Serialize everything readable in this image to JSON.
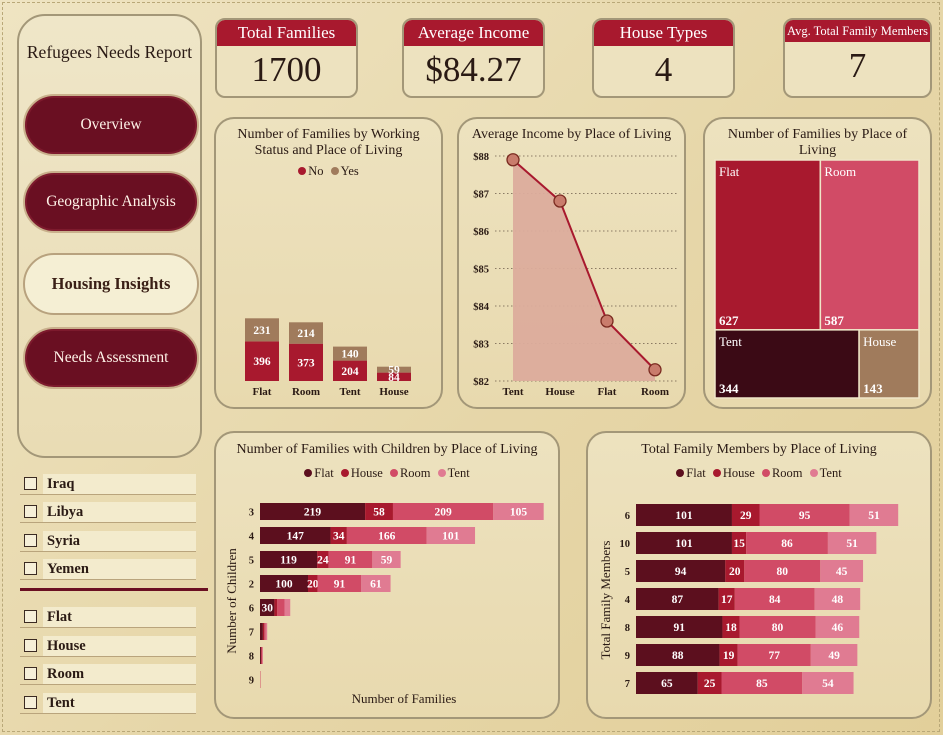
{
  "sidebar": {
    "title": "Refugees Needs Report",
    "nav": [
      {
        "label": "Overview",
        "active": false
      },
      {
        "label": "Geographic Analysis",
        "active": false
      },
      {
        "label": "Housing Insights",
        "active": true
      },
      {
        "label": "Needs Assessment",
        "active": false
      }
    ],
    "country_filters": [
      "Iraq",
      "Libya",
      "Syria",
      "Yemen"
    ],
    "place_filters": [
      "Flat",
      "House",
      "Room",
      "Tent"
    ]
  },
  "kpis": [
    {
      "label": "Total Families",
      "value": "1700"
    },
    {
      "label": "Average Income",
      "value": "$84.27"
    },
    {
      "label": "House Types",
      "value": "4"
    },
    {
      "label": "Avg. Total Family Members",
      "value": "7"
    }
  ],
  "colors": {
    "maroon": "#5c0f1e",
    "crimson": "#a8192e",
    "rose": "#d14b66",
    "pink": "#e07b92",
    "tan": "#a07b5c",
    "dark": "#3b0a15",
    "area_fill": "#dcac9c"
  },
  "chart_data": [
    {
      "id": "working_status",
      "type": "bar",
      "stacked": true,
      "title": "Number of Families by Working Status and Place of Living",
      "categories": [
        "Flat",
        "Room",
        "Tent",
        "House"
      ],
      "series": [
        {
          "name": "No",
          "values": [
            396,
            373,
            204,
            84
          ],
          "color": "#a8192e"
        },
        {
          "name": "Yes",
          "values": [
            231,
            214,
            140,
            59
          ],
          "color": "#a07b5c"
        }
      ],
      "legend": "top"
    },
    {
      "id": "avg_income",
      "type": "area",
      "title": "Average Income by Place of Living",
      "categories": [
        "Tent",
        "House",
        "Flat",
        "Room"
      ],
      "values": [
        87.9,
        86.8,
        83.6,
        82.3
      ],
      "yticks": [
        "$82",
        "$83",
        "$84",
        "$85",
        "$86",
        "$87",
        "$88"
      ],
      "ylim": [
        82,
        88
      ],
      "grid": true
    },
    {
      "id": "treemap",
      "type": "treemap",
      "title": "Number of Families by Place of Living",
      "items": [
        {
          "name": "Flat",
          "value": 627,
          "color": "#a8192e"
        },
        {
          "name": "Room",
          "value": 587,
          "color": "#d14b66"
        },
        {
          "name": "Tent",
          "value": 344,
          "color": "#3b0a15"
        },
        {
          "name": "House",
          "value": 143,
          "color": "#a07b5c"
        }
      ]
    },
    {
      "id": "children",
      "type": "bar",
      "orientation": "horizontal",
      "stacked": true,
      "title": "Number of Families with Children by Place of Living",
      "xlabel": "Number of Families",
      "ylabel": "Number of Children",
      "categories": [
        "3",
        "4",
        "5",
        "2",
        "6",
        "7",
        "8",
        "9"
      ],
      "series": [
        {
          "name": "Flat",
          "values": [
            219,
            147,
            119,
            100,
            30,
            6,
            2,
            0
          ],
          "color": "#5c0f1e"
        },
        {
          "name": "House",
          "values": [
            58,
            34,
            24,
            20,
            6,
            3,
            1,
            0
          ],
          "color": "#a8192e"
        },
        {
          "name": "Room",
          "values": [
            209,
            166,
            91,
            91,
            15,
            3,
            2,
            1
          ],
          "color": "#d14b66"
        },
        {
          "name": "Tent",
          "values": [
            105,
            101,
            59,
            61,
            12,
            3,
            1,
            0
          ],
          "color": "#e07b92"
        }
      ],
      "label_min": 20,
      "legend": "top"
    },
    {
      "id": "members",
      "type": "bar",
      "orientation": "horizontal",
      "stacked": true,
      "title": "Total Family Members by Place of Living",
      "ylabel": "Total Family Members",
      "categories": [
        "6",
        "10",
        "5",
        "4",
        "8",
        "9",
        "7"
      ],
      "series": [
        {
          "name": "Flat",
          "values": [
            101,
            101,
            94,
            87,
            91,
            88,
            65
          ],
          "color": "#5c0f1e"
        },
        {
          "name": "House",
          "values": [
            29,
            15,
            20,
            17,
            18,
            19,
            25
          ],
          "color": "#a8192e"
        },
        {
          "name": "Room",
          "values": [
            95,
            86,
            80,
            84,
            80,
            77,
            85
          ],
          "color": "#d14b66"
        },
        {
          "name": "Tent",
          "values": [
            51,
            51,
            45,
            48,
            46,
            49,
            54
          ],
          "color": "#e07b92"
        }
      ],
      "label_min": 10,
      "legend": "top"
    }
  ]
}
